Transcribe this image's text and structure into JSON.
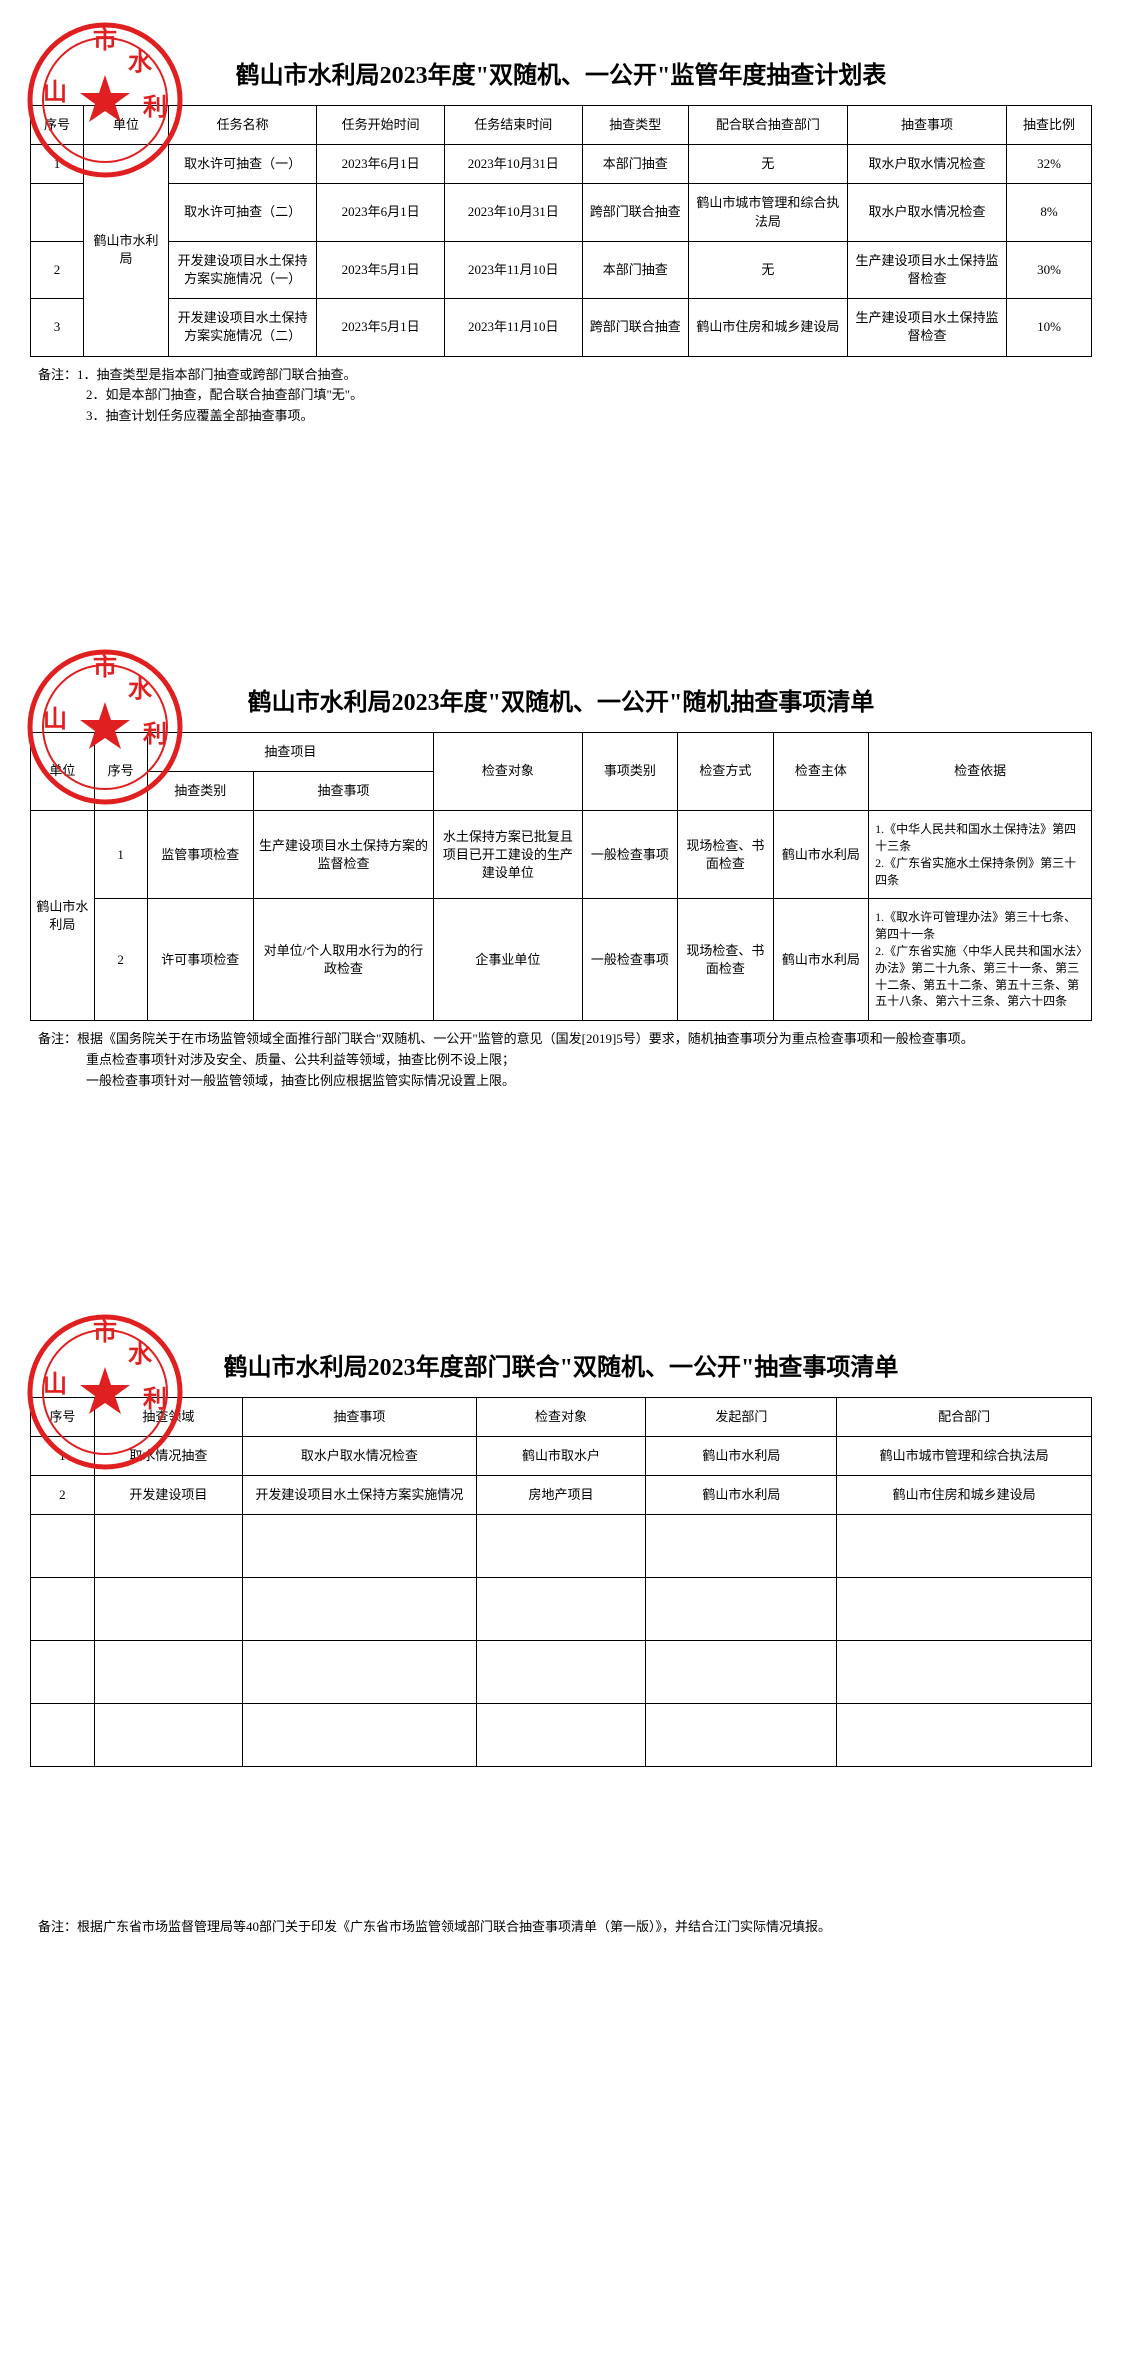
{
  "stamp": {
    "text_top": "市",
    "text_chars": [
      "山",
      "水",
      "利"
    ],
    "color": "#e02020",
    "star_color": "#e02020"
  },
  "page1": {
    "title": "鹤山市水利局2023年度\"双随机、一公开\"监管年度抽查计划表",
    "headers": [
      "序号",
      "单位",
      "任务名称",
      "任务开始时间",
      "任务结束时间",
      "抽查类型",
      "配合联合抽查部门",
      "抽查事项",
      "抽查比例"
    ],
    "unit": "鹤山市水利局",
    "rows": [
      {
        "seq": "1",
        "task": "取水许可抽查（一）",
        "start": "2023年6月1日",
        "end": "2023年10月31日",
        "type": "本部门抽查",
        "joint": "无",
        "item": "取水户取水情况检查",
        "ratio": "32%"
      },
      {
        "seq": "",
        "task": "取水许可抽查（二）",
        "start": "2023年6月1日",
        "end": "2023年10月31日",
        "type": "跨部门联合抽查",
        "joint": "鹤山市城市管理和综合执法局",
        "item": "取水户取水情况检查",
        "ratio": "8%"
      },
      {
        "seq": "2",
        "task": "开发建设项目水土保持方案实施情况（一）",
        "start": "2023年5月1日",
        "end": "2023年11月10日",
        "type": "本部门抽查",
        "joint": "无",
        "item": "生产建设项目水土保持监督检查",
        "ratio": "30%"
      },
      {
        "seq": "3",
        "task": "开发建设项目水土保持方案实施情况（二）",
        "start": "2023年5月1日",
        "end": "2023年11月10日",
        "type": "跨部门联合抽查",
        "joint": "鹤山市住房和城乡建设局",
        "item": "生产建设项目水土保持监督检查",
        "ratio": "10%"
      }
    ],
    "notes_label": "备注：",
    "notes": [
      "1．抽查类型是指本部门抽查或跨部门联合抽查。",
      "2．如是本部门抽查，配合联合抽查部门填\"无\"。",
      "3．抽查计划任务应覆盖全部抽查事项。"
    ],
    "col_widths": [
      "5%",
      "8%",
      "14%",
      "12%",
      "13%",
      "10%",
      "15%",
      "15%",
      "8%"
    ]
  },
  "page2": {
    "title": "鹤山市水利局2023年度\"双随机、一公开\"随机抽查事项清单",
    "header_top": [
      "单位",
      "序号",
      "抽查项目",
      "检查对象",
      "事项类别",
      "检查方式",
      "检查主体",
      "检查依据"
    ],
    "header_sub": [
      "抽查类别",
      "抽查事项"
    ],
    "unit": "鹤山市水利局",
    "rows": [
      {
        "seq": "1",
        "cat": "监管事项检查",
        "item": "生产建设项目水土保持方案的监督检查",
        "target": "水土保持方案已批复且项目已开工建设的生产建设单位",
        "kind": "一般检查事项",
        "method": "现场检查、书面检查",
        "body": "鹤山市水利局",
        "basis": "1.《中华人民共和国水土保持法》第四十三条\n2.《广东省实施水土保持条例》第三十四条"
      },
      {
        "seq": "2",
        "cat": "许可事项检查",
        "item": "对单位/个人取用水行为的行政检查",
        "target": "企事业单位",
        "kind": "一般检查事项",
        "method": "现场检查、书面检查",
        "body": "鹤山市水利局",
        "basis": "1.《取水许可管理办法》第三十七条、第四十一条\n2.《广东省实施〈中华人民共和国水法〉办法》第二十九条、第三十一条、第三十二条、第五十二条、第五十三条、第五十八条、第六十三条、第六十四条"
      }
    ],
    "notes_label": "备注：",
    "notes": [
      "根据《国务院关于在市场监管领域全面推行部门联合\"双随机、一公开\"监管的意见（国发[2019]5号）要求，随机抽查事项分为重点检查事项和一般检查事项。",
      "重点检查事项针对涉及安全、质量、公共利益等领域，抽查比例不设上限；",
      "一般检查事项针对一般监管领域，抽查比例应根据监管实际情况设置上限。"
    ],
    "col_widths": [
      "6%",
      "5%",
      "10%",
      "17%",
      "14%",
      "9%",
      "9%",
      "9%",
      "21%"
    ]
  },
  "page3": {
    "title": "鹤山市水利局2023年度部门联合\"双随机、一公开\"抽查事项清单",
    "headers": [
      "序号",
      "抽查领域",
      "抽查事项",
      "检查对象",
      "发起部门",
      "配合部门"
    ],
    "rows": [
      {
        "seq": "1",
        "domain": "取水情况抽查",
        "item": "取水户取水情况检查",
        "target": "鹤山市取水户",
        "starter": "鹤山市水利局",
        "coop": "鹤山市城市管理和综合执法局"
      },
      {
        "seq": "2",
        "domain": "开发建设项目",
        "item": "开发建设项目水土保持方案实施情况",
        "target": "房地产项目",
        "starter": "鹤山市水利局",
        "coop": "鹤山市住房和城乡建设局"
      }
    ],
    "empty_rows": 4,
    "notes_label": "备注：",
    "notes": [
      "根据广东省市场监督管理局等40部门关于印发《广东省市场监管领域部门联合抽查事项清单（第一版）》，并结合江门实际情况填报。"
    ],
    "col_widths": [
      "6%",
      "14%",
      "22%",
      "16%",
      "18%",
      "24%"
    ]
  }
}
